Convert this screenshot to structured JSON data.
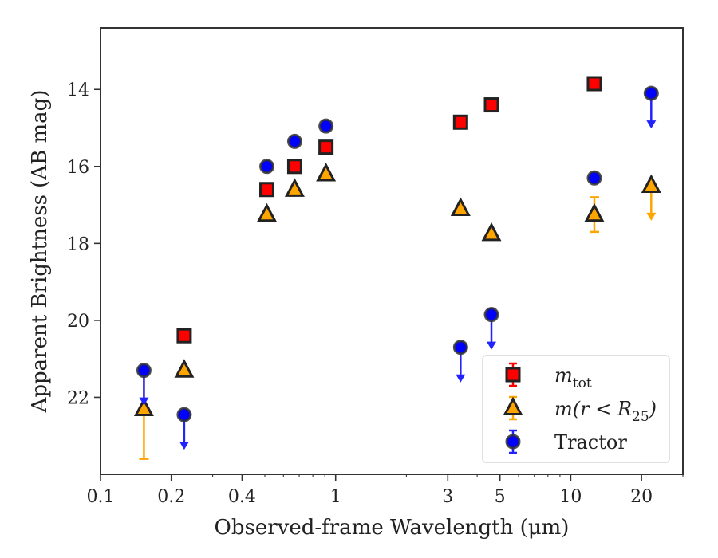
{
  "chart_data": {
    "type": "scatter",
    "title": "",
    "xlabel": "Observed-frame Wavelength (μm)",
    "ylabel": "Apparent Brightness (AB mag)",
    "xscale": "log",
    "xlim": [
      0.1,
      30
    ],
    "ylim": [
      24.0,
      12.4
    ],
    "y_inverted": true,
    "x_ticks": [
      {
        "value": 0.1,
        "label": "0.1"
      },
      {
        "value": 0.2,
        "label": "0.2"
      },
      {
        "value": 0.4,
        "label": "0.4"
      },
      {
        "value": 1,
        "label": "1"
      },
      {
        "value": 3,
        "label": "3"
      },
      {
        "value": 5,
        "label": "5"
      },
      {
        "value": 10,
        "label": "10"
      },
      {
        "value": 20,
        "label": "20"
      }
    ],
    "y_ticks": [
      {
        "value": 14,
        "label": "14"
      },
      {
        "value": 16,
        "label": "16"
      },
      {
        "value": 18,
        "label": "18"
      },
      {
        "value": 20,
        "label": "20"
      },
      {
        "value": 22,
        "label": "22"
      }
    ],
    "grid": false,
    "legend_position": "lower-right",
    "series": [
      {
        "name": "m_tot",
        "marker": "square",
        "color": "#ff0000",
        "edge_color": "#222222",
        "error_color": "#ff0000",
        "points": [
          {
            "x": 0.227,
            "y": 20.4
          },
          {
            "x": 0.51,
            "y": 16.6
          },
          {
            "x": 0.67,
            "y": 16.0
          },
          {
            "x": 0.91,
            "y": 15.5
          },
          {
            "x": 3.4,
            "y": 14.85
          },
          {
            "x": 4.6,
            "y": 14.4
          },
          {
            "x": 12.6,
            "y": 13.85
          }
        ]
      },
      {
        "name": "m(r < R25)",
        "marker": "triangle",
        "color": "#ffa500",
        "edge_color": "#222222",
        "error_color": "#ffa500",
        "points": [
          {
            "x": 0.153,
            "y": 22.3,
            "yerr_low": 1.3,
            "yerr_high": 1.05
          },
          {
            "x": 0.227,
            "y": 21.3
          },
          {
            "x": 0.51,
            "y": 17.25
          },
          {
            "x": 0.67,
            "y": 16.6
          },
          {
            "x": 0.91,
            "y": 16.2
          },
          {
            "x": 3.4,
            "y": 17.1
          },
          {
            "x": 4.6,
            "y": 17.75
          },
          {
            "x": 12.6,
            "y": 17.25,
            "yerr_low": 0.45,
            "yerr_high": 0.45
          },
          {
            "x": 22.0,
            "y": 16.5,
            "upper_limit": true
          }
        ]
      },
      {
        "name": "Tractor",
        "marker": "circle",
        "color": "#0000ff",
        "edge_color": "#333333",
        "error_color": "#2222ff",
        "points": [
          {
            "x": 0.153,
            "y": 21.3,
            "upper_limit": true
          },
          {
            "x": 0.227,
            "y": 22.45,
            "upper_limit": true
          },
          {
            "x": 0.51,
            "y": 16.0
          },
          {
            "x": 0.67,
            "y": 15.35
          },
          {
            "x": 0.91,
            "y": 14.95
          },
          {
            "x": 3.4,
            "y": 20.7,
            "upper_limit": true
          },
          {
            "x": 4.6,
            "y": 19.85,
            "upper_limit": true
          },
          {
            "x": 12.6,
            "y": 16.3
          },
          {
            "x": 22.0,
            "y": 14.1,
            "upper_limit": true
          }
        ]
      }
    ],
    "legend": [
      {
        "series": 0,
        "label_main": "m",
        "label_sub": "tot"
      },
      {
        "series": 1,
        "label_main": "m(r < R",
        "label_sub": "25",
        "label_tail": ")"
      },
      {
        "series": 2,
        "label_main": "Tractor"
      }
    ]
  }
}
